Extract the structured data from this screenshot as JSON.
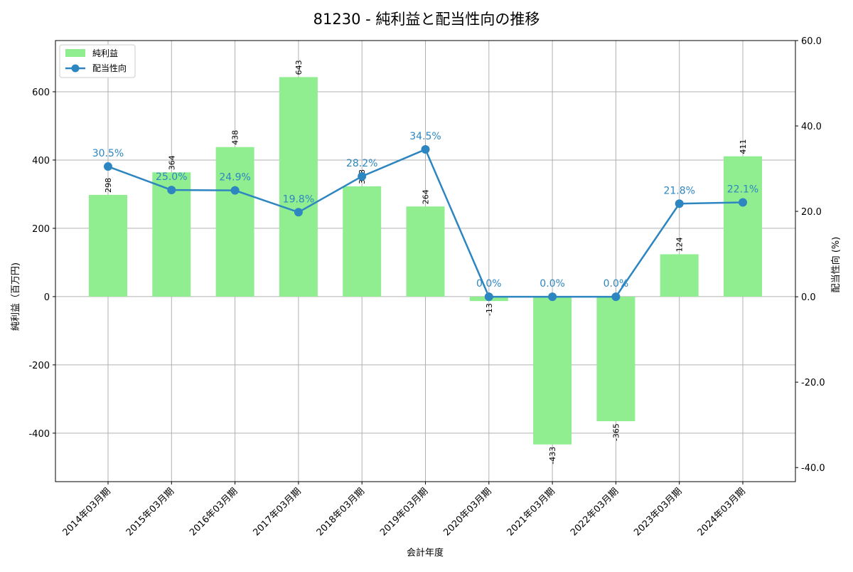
{
  "chart_data": {
    "type": "bar+line",
    "title": "81230 - 純利益と配当性向の推移",
    "xlabel": "会計年度",
    "ylabel": "純利益（百万円)",
    "y2label": "配当性向 (%)",
    "categories": [
      "2014年03月期",
      "2015年03月期",
      "2016年03月期",
      "2017年03月期",
      "2018年03月期",
      "2019年03月期",
      "2020年03月期",
      "2021年03月期",
      "2022年03月期",
      "2023年03月期",
      "2024年03月期"
    ],
    "series": [
      {
        "name": "純利益",
        "type": "bar",
        "axis": "left",
        "color": "#90ee90",
        "values": [
          298,
          364,
          438,
          643,
          323,
          264,
          -13,
          -433,
          -365,
          124,
          411
        ],
        "labels": [
          "298",
          "364",
          "438",
          "643",
          "323",
          "264",
          "-13",
          "-433",
          "-365",
          "124",
          "411"
        ]
      },
      {
        "name": "配当性向",
        "type": "line",
        "axis": "right",
        "color": "#2e86c1",
        "values": [
          30.5,
          25.0,
          24.9,
          19.8,
          28.2,
          34.5,
          0.0,
          0.0,
          0.0,
          21.8,
          22.1
        ],
        "labels": [
          "30.5%",
          "25.0%",
          "24.9%",
          "19.8%",
          "28.2%",
          "34.5%",
          "0.0%",
          "0.0%",
          "0.0%",
          "21.8%",
          "22.1%"
        ]
      }
    ],
    "ylim": [
      -542,
      750
    ],
    "y2lim": [
      -43.3,
      60
    ],
    "yticks": [
      -400,
      -200,
      0,
      200,
      400,
      600
    ],
    "ytick_labels": [
      "-400",
      "-200",
      "0",
      "200",
      "400",
      "600"
    ],
    "y2ticks": [
      -40,
      -20,
      0,
      20,
      40,
      60
    ],
    "y2tick_labels": [
      "-40.0",
      "-20.0",
      "0.0",
      "20.0",
      "40.0",
      "60.0"
    ],
    "grid": true,
    "legend": "top-left"
  }
}
